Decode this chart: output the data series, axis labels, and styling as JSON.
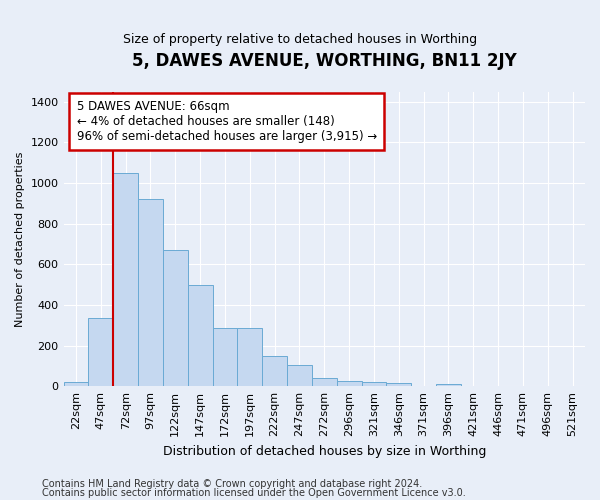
{
  "title": "5, DAWES AVENUE, WORTHING, BN11 2JY",
  "subtitle": "Size of property relative to detached houses in Worthing",
  "xlabel": "Distribution of detached houses by size in Worthing",
  "ylabel": "Number of detached properties",
  "footer_line1": "Contains HM Land Registry data © Crown copyright and database right 2024.",
  "footer_line2": "Contains public sector information licensed under the Open Government Licence v3.0.",
  "categories": [
    "22sqm",
    "47sqm",
    "72sqm",
    "97sqm",
    "122sqm",
    "147sqm",
    "172sqm",
    "197sqm",
    "222sqm",
    "247sqm",
    "272sqm",
    "296sqm",
    "321sqm",
    "346sqm",
    "371sqm",
    "396sqm",
    "421sqm",
    "446sqm",
    "471sqm",
    "496sqm",
    "521sqm"
  ],
  "bar_values": [
    20,
    335,
    1050,
    920,
    670,
    500,
    285,
    285,
    150,
    105,
    38,
    25,
    20,
    18,
    0,
    12,
    0,
    0,
    0,
    0,
    0
  ],
  "bar_color": "#c5d8f0",
  "bar_edge_color": "#6aaad4",
  "ylim": [
    0,
    1450
  ],
  "yticks": [
    0,
    200,
    400,
    600,
    800,
    1000,
    1200,
    1400
  ],
  "property_line_x": 1.5,
  "annotation_title": "5 DAWES AVENUE: 66sqm",
  "annotation_line1": "← 4% of detached houses are smaller (148)",
  "annotation_line2": "96% of semi-detached houses are larger (3,915) →",
  "annotation_box_color": "#ffffff",
  "annotation_box_edge_color": "#cc0000",
  "vline_color": "#cc0000",
  "bg_color": "#e8eef8",
  "grid_color": "#ffffff",
  "title_fontsize": 12,
  "subtitle_fontsize": 9,
  "ylabel_fontsize": 8,
  "xlabel_fontsize": 9,
  "tick_fontsize": 8,
  "ann_fontsize": 8.5,
  "footer_fontsize": 7
}
